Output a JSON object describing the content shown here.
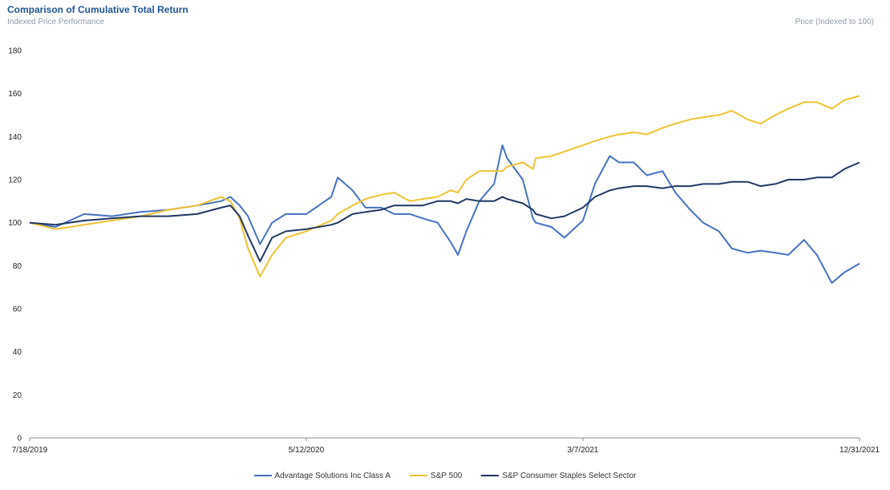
{
  "header": {
    "title": "Comparison  of Cumulative  Total Return",
    "subtitle": "Indexed Price Performance",
    "y_unit_label": "Price (Indexed to 100)"
  },
  "chart_data": {
    "type": "line",
    "title": "Comparison  of Cumulative  Total Return",
    "subtitle": "Indexed Price Performance",
    "ylabel": "Price (Indexed to 100)",
    "xlabel": "",
    "ylim": [
      0,
      180
    ],
    "yticks": [
      0,
      20,
      40,
      60,
      80,
      100,
      120,
      140,
      160,
      180
    ],
    "x_range": [
      "7/18/2019",
      "12/31/2021"
    ],
    "xticks": [
      "7/18/2019",
      "5/12/2020",
      "3/7/2021",
      "12/31/2021"
    ],
    "grid": false,
    "legend_position": "bottom",
    "x": [
      "7/18/2019",
      "8/15/2019",
      "9/15/2019",
      "10/15/2019",
      "11/15/2019",
      "12/15/2019",
      "1/15/2020",
      "2/10/2020",
      "2/20/2020",
      "3/1/2020",
      "3/10/2020",
      "3/23/2020",
      "4/5/2020",
      "4/20/2020",
      "5/12/2020",
      "6/8/2020",
      "6/15/2020",
      "7/1/2020",
      "7/15/2020",
      "8/1/2020",
      "8/15/2020",
      "9/1/2020",
      "9/15/2020",
      "10/1/2020",
      "10/15/2020",
      "10/23/2020",
      "11/1/2020",
      "11/15/2020",
      "12/1/2020",
      "12/10/2020",
      "12/15/2020",
      "1/1/2021",
      "1/12/2021",
      "1/15/2021",
      "2/1/2021",
      "2/15/2021",
      "3/7/2021",
      "3/20/2021",
      "4/5/2021",
      "4/15/2021",
      "5/1/2021",
      "5/15/2021",
      "6/1/2021",
      "6/15/2021",
      "7/1/2021",
      "7/15/2021",
      "8/1/2021",
      "8/15/2021",
      "9/1/2021",
      "9/15/2021",
      "10/1/2021",
      "10/15/2021",
      "11/1/2021",
      "11/15/2021",
      "12/1/2021",
      "12/15/2021",
      "12/31/2021"
    ],
    "series": [
      {
        "name": "Advantage Solutions Inc Class A",
        "color": "#4472c4",
        "values": [
          100,
          98,
          104,
          103,
          105,
          106,
          108,
          110,
          112,
          108,
          103,
          90,
          100,
          104,
          104,
          112,
          121,
          115,
          107,
          107,
          104,
          104,
          102,
          100,
          91,
          85,
          96,
          110,
          118,
          136,
          130,
          120,
          102,
          100,
          98,
          93,
          101,
          118,
          131,
          128,
          128,
          122,
          124,
          114,
          106,
          100,
          96,
          88,
          86,
          87,
          86,
          85,
          92,
          85,
          72,
          77,
          81
        ]
      },
      {
        "name": "S&P 500",
        "color": "#f1c232",
        "values": [
          100,
          97,
          99,
          101,
          103,
          106,
          108,
          112,
          110,
          102,
          88,
          75,
          85,
          93,
          96,
          101,
          104,
          108,
          111,
          113,
          114,
          110,
          111,
          112,
          115,
          114,
          120,
          124,
          124,
          124,
          126,
          128,
          125,
          130,
          131,
          133,
          136,
          138,
          140,
          141,
          142,
          141,
          144,
          146,
          148,
          149,
          150,
          152,
          148,
          146,
          150,
          153,
          156,
          156,
          153,
          157,
          159
        ]
      },
      {
        "name": "S&P Consumer Staples Select Sector",
        "color": "#1f3864",
        "values": [
          100,
          99,
          101,
          102,
          103,
          103,
          104,
          107,
          108,
          103,
          94,
          82,
          93,
          96,
          97,
          99,
          100,
          104,
          105,
          106,
          108,
          108,
          108,
          110,
          110,
          109,
          111,
          110,
          110,
          112,
          111,
          109,
          106,
          104,
          102,
          103,
          107,
          112,
          115,
          116,
          117,
          117,
          116,
          117,
          117,
          118,
          118,
          119,
          119,
          117,
          118,
          120,
          120,
          121,
          121,
          125,
          128
        ]
      }
    ]
  }
}
